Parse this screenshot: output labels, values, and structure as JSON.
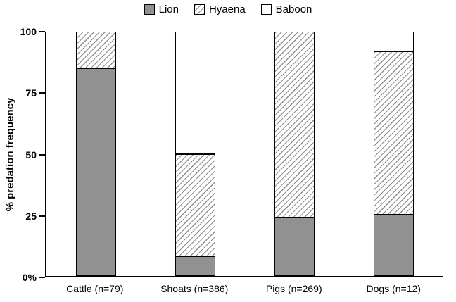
{
  "chart_data": {
    "type": "bar",
    "subtype": "stacked",
    "title": "",
    "xlabel": "",
    "ylabel": "% predation frequency",
    "ylim": [
      0,
      100
    ],
    "grid": false,
    "legend_position": "top",
    "ytick_values": [
      0,
      25,
      50,
      75,
      100
    ],
    "ytick_labels": [
      "0%",
      "25",
      "50",
      "75",
      "100"
    ],
    "categories": [
      "Cattle (n=79)",
      "Shoats (n=386)",
      "Pigs (n=269)",
      "Dogs (n=12)"
    ],
    "series": [
      {
        "name": "Lion",
        "fill": "solid",
        "color": "#919191",
        "values": [
          85,
          8,
          24,
          25
        ]
      },
      {
        "name": "Hyaena",
        "fill": "hatch",
        "color": "#ffffff",
        "values": [
          15,
          42,
          76,
          67
        ]
      },
      {
        "name": "Baboon",
        "fill": "white",
        "color": "#ffffff",
        "values": [
          0,
          50,
          0,
          8
        ]
      }
    ]
  },
  "colors": {
    "axis": "#000000",
    "bar_solid": "#919191",
    "hatch_line": "#8f8f8f",
    "background": "#ffffff"
  }
}
